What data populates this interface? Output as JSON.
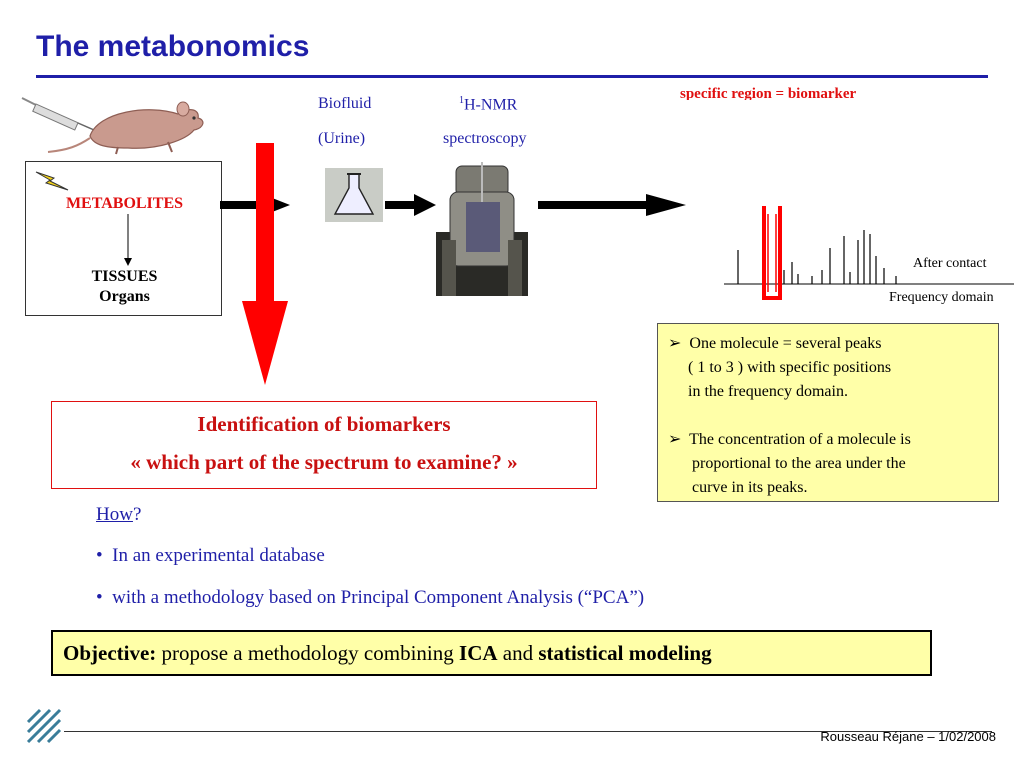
{
  "slide": {
    "title": "The metabonomics",
    "biomarker_note": "specific region = biomarker",
    "biofluid": {
      "line1": "Biofluid",
      "line2": "(Urine)"
    },
    "nmr": {
      "superscript": "1",
      "line1": "H-NMR",
      "line2": "spectroscopy"
    },
    "metabolites_box": {
      "label": "METABOLITES",
      "tissues": "TISSUES",
      "organs": "Organs"
    },
    "spectrum": {
      "after_contact": "After contact",
      "frequency_domain": "Frequency domain"
    },
    "info_box": {
      "item1_l1": "One molecule = several peaks",
      "item1_l2": "( 1 to 3 ) with specific positions",
      "item1_l3": "in the  frequency domain.",
      "item2_l1": "The concentration of a molecule is",
      "item2_l2": "proportional to the area under  the",
      "item2_l3": "curve in its peaks."
    },
    "identification": {
      "line1": "Identification of biomarkers",
      "line2": "«  which part of the spectrum to examine? »"
    },
    "how": {
      "link": "How",
      "suffix": "?"
    },
    "bullets": [
      "In an experimental database",
      "with a methodology based on Principal Component Analysis (“PCA”)"
    ],
    "objective": {
      "label": "Objective:",
      "text1": " propose a methodology combining ",
      "ica": "ICA",
      "and": " and ",
      "stat": "statistical modeling"
    },
    "footer": "Rousseau Réjane – 1/02/2008"
  },
  "colors": {
    "title": "#1f1fa8",
    "red": "#e01010",
    "yellow_box": "#ffffa8"
  },
  "icons": [
    "mouse-icon",
    "syringe-icon",
    "lightning-icon",
    "flask-icon",
    "nmr-machine-icon",
    "spectrum-plot",
    "logo-icon"
  ]
}
